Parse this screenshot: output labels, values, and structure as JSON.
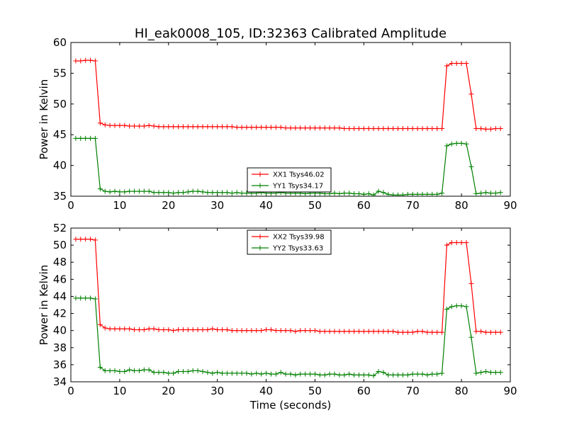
{
  "figure": {
    "title": "HI_eak0008_105, ID:32363 Calibrated Amplitude",
    "xlabel": "Time (seconds)"
  },
  "chart_data": [
    {
      "type": "line",
      "ylabel": "Power in Kelvin",
      "xlabel": "",
      "xlim": [
        0,
        90
      ],
      "ylim": [
        35,
        60
      ],
      "x_ticks": [
        "0",
        "10",
        "20",
        "30",
        "40",
        "50",
        "60",
        "70",
        "80",
        "90"
      ],
      "y_ticks": [
        "35",
        "40",
        "45",
        "50",
        "55",
        "60"
      ],
      "legend_position": "lower-center",
      "series": [
        {
          "name": "XX1 Tsys46.02",
          "color": "#ff0000",
          "x": [
            1,
            2,
            3,
            4,
            5,
            6,
            7,
            8,
            9,
            10,
            11,
            12,
            13,
            14,
            15,
            16,
            17,
            18,
            19,
            20,
            21,
            22,
            23,
            24,
            25,
            26,
            27,
            28,
            29,
            30,
            31,
            32,
            33,
            34,
            35,
            36,
            37,
            38,
            39,
            40,
            41,
            42,
            43,
            44,
            45,
            46,
            47,
            48,
            49,
            50,
            51,
            52,
            53,
            54,
            55,
            56,
            57,
            58,
            59,
            60,
            61,
            62,
            63,
            64,
            65,
            66,
            67,
            68,
            69,
            70,
            71,
            72,
            73,
            74,
            75,
            76,
            77,
            78,
            79,
            80,
            81,
            82,
            83,
            84,
            85,
            86,
            87,
            88
          ],
          "y": [
            57.0,
            57.0,
            57.1,
            57.1,
            57.0,
            46.9,
            46.6,
            46.5,
            46.5,
            46.5,
            46.5,
            46.4,
            46.4,
            46.4,
            46.4,
            46.5,
            46.4,
            46.3,
            46.3,
            46.3,
            46.3,
            46.3,
            46.3,
            46.3,
            46.3,
            46.3,
            46.3,
            46.3,
            46.3,
            46.3,
            46.3,
            46.3,
            46.3,
            46.2,
            46.2,
            46.2,
            46.2,
            46.2,
            46.2,
            46.2,
            46.2,
            46.2,
            46.2,
            46.1,
            46.1,
            46.1,
            46.1,
            46.1,
            46.1,
            46.1,
            46.1,
            46.1,
            46.1,
            46.1,
            46.1,
            46.0,
            46.0,
            46.0,
            46.0,
            46.0,
            46.0,
            46.0,
            46.0,
            46.0,
            46.0,
            46.0,
            46.0,
            46.0,
            46.0,
            46.0,
            46.0,
            46.0,
            46.0,
            46.0,
            46.0,
            46.0,
            56.2,
            56.6,
            56.6,
            56.6,
            56.6,
            51.6,
            46.0,
            46.0,
            45.9,
            45.9,
            46.0,
            46.0
          ]
        },
        {
          "name": "YY1 Tsys34.17",
          "color": "#008000",
          "x": [
            1,
            2,
            3,
            4,
            5,
            6,
            7,
            8,
            9,
            10,
            11,
            12,
            13,
            14,
            15,
            16,
            17,
            18,
            19,
            20,
            21,
            22,
            23,
            24,
            25,
            26,
            27,
            28,
            29,
            30,
            31,
            32,
            33,
            34,
            35,
            36,
            37,
            38,
            39,
            40,
            41,
            42,
            43,
            44,
            45,
            46,
            47,
            48,
            49,
            50,
            51,
            52,
            53,
            54,
            55,
            56,
            57,
            58,
            59,
            60,
            61,
            62,
            63,
            64,
            65,
            66,
            67,
            68,
            69,
            70,
            71,
            72,
            73,
            74,
            75,
            76,
            77,
            78,
            79,
            80,
            81,
            82,
            83,
            84,
            85,
            86,
            87,
            88
          ],
          "y": [
            44.4,
            44.4,
            44.4,
            44.4,
            44.4,
            36.2,
            35.8,
            35.7,
            35.8,
            35.7,
            35.7,
            35.8,
            35.8,
            35.8,
            35.8,
            35.8,
            35.6,
            35.6,
            35.6,
            35.6,
            35.5,
            35.6,
            35.6,
            35.7,
            35.8,
            35.8,
            35.7,
            35.6,
            35.6,
            35.6,
            35.6,
            35.6,
            35.5,
            35.6,
            35.5,
            35.5,
            35.5,
            35.5,
            35.6,
            35.5,
            35.5,
            35.5,
            35.6,
            35.5,
            35.5,
            35.5,
            35.5,
            35.4,
            35.5,
            35.5,
            35.5,
            35.4,
            35.4,
            35.5,
            35.4,
            35.5,
            35.5,
            35.4,
            35.4,
            35.3,
            35.4,
            35.2,
            35.8,
            35.6,
            35.3,
            35.2,
            35.2,
            35.2,
            35.3,
            35.3,
            35.3,
            35.3,
            35.3,
            35.3,
            35.3,
            35.5,
            43.2,
            43.5,
            43.6,
            43.6,
            43.5,
            39.8,
            35.4,
            35.5,
            35.6,
            35.5,
            35.5,
            35.6
          ]
        }
      ]
    },
    {
      "type": "line",
      "ylabel": "Power in Kelvin",
      "xlabel": "Time (seconds)",
      "xlim": [
        0,
        90
      ],
      "ylim": [
        34,
        52
      ],
      "x_ticks": [
        "0",
        "10",
        "20",
        "30",
        "40",
        "50",
        "60",
        "70",
        "80",
        "90"
      ],
      "y_ticks": [
        "34",
        "36",
        "38",
        "40",
        "42",
        "44",
        "46",
        "48",
        "50",
        "52"
      ],
      "legend_position": "upper-center",
      "series": [
        {
          "name": "XX2 Tsys39.98",
          "color": "#ff0000",
          "x": [
            1,
            2,
            3,
            4,
            5,
            6,
            7,
            8,
            9,
            10,
            11,
            12,
            13,
            14,
            15,
            16,
            17,
            18,
            19,
            20,
            21,
            22,
            23,
            24,
            25,
            26,
            27,
            28,
            29,
            30,
            31,
            32,
            33,
            34,
            35,
            36,
            37,
            38,
            39,
            40,
            41,
            42,
            43,
            44,
            45,
            46,
            47,
            48,
            49,
            50,
            51,
            52,
            53,
            54,
            55,
            56,
            57,
            58,
            59,
            60,
            61,
            62,
            63,
            64,
            65,
            66,
            67,
            68,
            69,
            70,
            71,
            72,
            73,
            74,
            75,
            76,
            77,
            78,
            79,
            80,
            81,
            82,
            83,
            84,
            85,
            86,
            87,
            88
          ],
          "y": [
            50.7,
            50.7,
            50.7,
            50.7,
            50.6,
            40.7,
            40.3,
            40.2,
            40.2,
            40.2,
            40.2,
            40.2,
            40.1,
            40.1,
            40.1,
            40.2,
            40.2,
            40.1,
            40.1,
            40.1,
            40.0,
            40.1,
            40.1,
            40.1,
            40.1,
            40.1,
            40.1,
            40.1,
            40.2,
            40.1,
            40.1,
            40.1,
            40.0,
            40.0,
            40.0,
            40.0,
            40.0,
            40.0,
            40.0,
            40.1,
            40.1,
            40.0,
            40.0,
            40.0,
            40.0,
            39.9,
            40.0,
            40.0,
            40.0,
            40.0,
            39.9,
            39.9,
            39.9,
            39.9,
            39.9,
            39.9,
            39.9,
            39.9,
            39.9,
            39.9,
            39.9,
            39.9,
            39.9,
            39.9,
            39.9,
            39.9,
            39.8,
            39.8,
            39.8,
            39.8,
            39.9,
            39.9,
            39.8,
            39.8,
            39.8,
            39.8,
            50.0,
            50.3,
            50.3,
            50.3,
            50.3,
            45.5,
            39.9,
            39.9,
            39.8,
            39.8,
            39.8,
            39.8
          ]
        },
        {
          "name": "YY2 Tsys33.63",
          "color": "#008000",
          "x": [
            1,
            2,
            3,
            4,
            5,
            6,
            7,
            8,
            9,
            10,
            11,
            12,
            13,
            14,
            15,
            16,
            17,
            18,
            19,
            20,
            21,
            22,
            23,
            24,
            25,
            26,
            27,
            28,
            29,
            30,
            31,
            32,
            33,
            34,
            35,
            36,
            37,
            38,
            39,
            40,
            41,
            42,
            43,
            44,
            45,
            46,
            47,
            48,
            49,
            50,
            51,
            52,
            53,
            54,
            55,
            56,
            57,
            58,
            59,
            60,
            61,
            62,
            63,
            64,
            65,
            66,
            67,
            68,
            69,
            70,
            71,
            72,
            73,
            74,
            75,
            76,
            77,
            78,
            79,
            80,
            81,
            82,
            83,
            84,
            85,
            86,
            87,
            88
          ],
          "y": [
            43.8,
            43.8,
            43.8,
            43.8,
            43.7,
            35.7,
            35.3,
            35.3,
            35.3,
            35.2,
            35.2,
            35.4,
            35.3,
            35.3,
            35.4,
            35.4,
            35.1,
            35.1,
            35.1,
            35.0,
            35.0,
            35.2,
            35.2,
            35.2,
            35.3,
            35.3,
            35.2,
            35.1,
            35.0,
            35.1,
            35.0,
            35.0,
            35.0,
            35.0,
            35.0,
            35.0,
            34.9,
            35.0,
            34.9,
            35.0,
            34.9,
            34.9,
            35.1,
            34.9,
            34.9,
            34.8,
            34.9,
            34.9,
            34.9,
            34.9,
            34.8,
            34.8,
            34.9,
            34.9,
            34.8,
            34.8,
            34.9,
            34.8,
            34.8,
            34.8,
            34.8,
            34.7,
            35.2,
            35.1,
            34.8,
            34.8,
            34.8,
            34.8,
            34.8,
            34.9,
            34.9,
            34.9,
            34.8,
            34.9,
            34.9,
            35.0,
            42.5,
            42.8,
            42.9,
            42.9,
            42.8,
            39.2,
            35.0,
            35.1,
            35.2,
            35.1,
            35.1,
            35.1
          ]
        }
      ]
    }
  ]
}
